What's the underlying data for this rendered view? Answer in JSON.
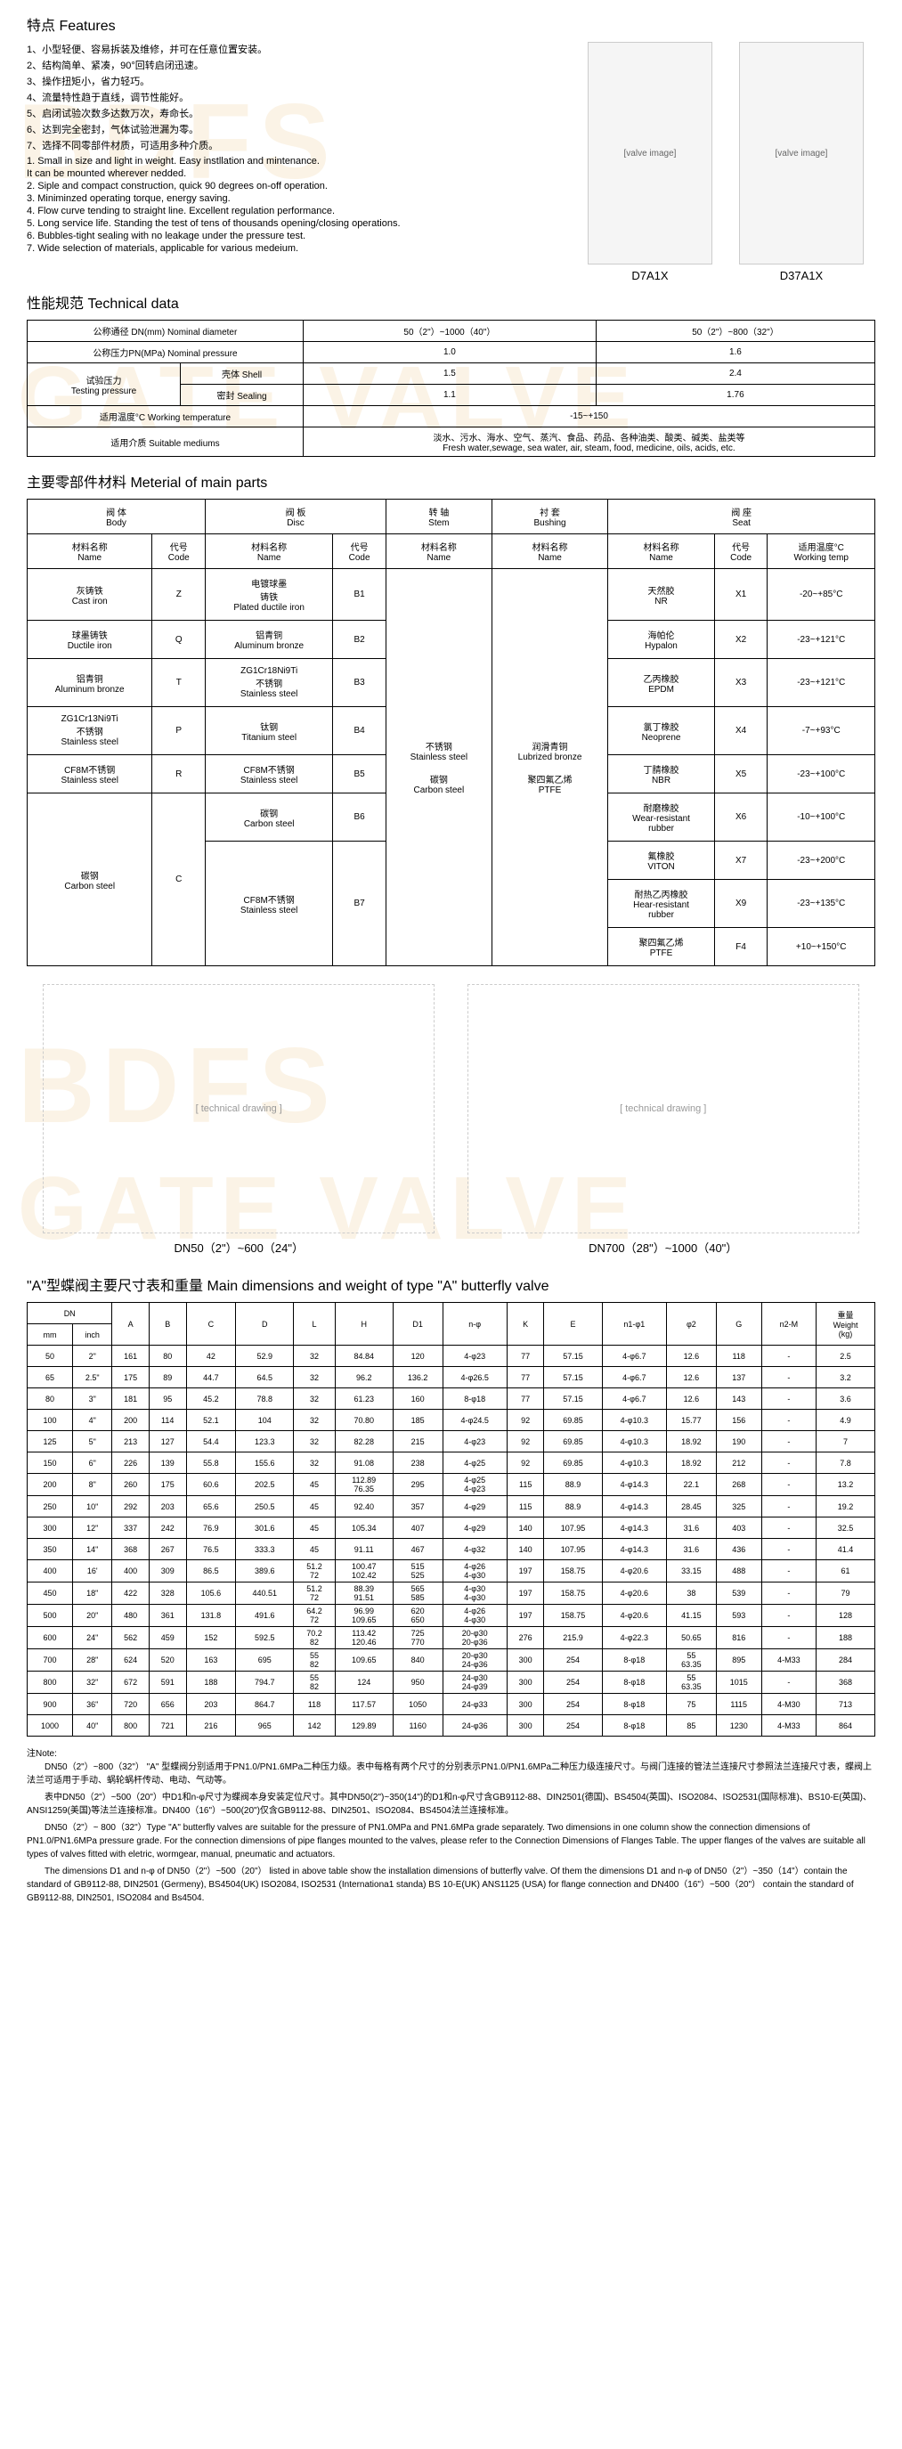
{
  "watermark_top": "BDFS",
  "watermark_bottom": "GATE VALVE",
  "features": {
    "title": "特点  Features",
    "cn": [
      "1、小型轻便、容易拆装及维修，并可在任意位置安装。",
      "2、结构简单、紧凑，90°回转启闭迅速。",
      "3、操作扭矩小，省力轻巧。",
      "4、流量特性趋于直线，调节性能好。",
      "5、启闭试验次数多达数万次，寿命长。",
      "6、达到完全密封，气体试验泄漏为零。",
      "7、选择不同零部件材质，可适用多种介质。"
    ],
    "en": [
      "1.  Small in size and light in weight. Easy instllation and mintenance.",
      "    It can be mounted wherever nedded.",
      "2.  Siple and compact construction, quick 90 degrees on-off operation.",
      "3.  Miniminzed operating torque, energy  saving.",
      "4.  Flow curve tending to straight line. Excellent regulation performance.",
      "5.  Long service life. Standing the test of tens of thousands  opening/closing operations.",
      "6.  Bubbles-tight sealing with no leakage under the pressure test.",
      "7.  Wide selection of materials, applicable for various medeium."
    ],
    "valve1": "D7A1X",
    "valve2": "D37A1X"
  },
  "tech": {
    "title": "性能规范  Technical data",
    "rows": [
      {
        "label": "公称通径 DN(mm)   Nominal diameter",
        "c1": "50（2\"）~1000（40\"）",
        "c2": "50（2\"）~800（32\"）"
      },
      {
        "label": "公称压力PN(MPa)   Nominal pressure",
        "c1": "1.0",
        "c2": "1.6"
      }
    ],
    "testing_label": "试验压力\nTesting pressure",
    "shell_label": "壳体  Shell",
    "shell_c1": "1.5",
    "shell_c2": "2.4",
    "sealing_label": "密封  Sealing",
    "sealing_c1": "1.1",
    "sealing_c2": "1.76",
    "temp_label": "适用温度°C Working temperature",
    "temp_val": "-15~+150",
    "medium_label": "适用介质  Suitable mediums",
    "medium_val": "淡水、污水、海水、空气、蒸汽、食品、药品、各种油类、酸类、碱类、盐类等\nFresh water,sewage, sea water, air, steam, food, medicine, oils, acids, etc."
  },
  "parts": {
    "title": "主要零部件材料   Meterial of main parts",
    "headers": [
      "阀   体\nBody",
      "阀   板\nDisc",
      "转   轴\nStem",
      "衬   套\nBushing",
      "阀   座\nSeat"
    ],
    "subheaders": [
      "材料名称\nName",
      "代号\nCode",
      "材料名称\nName",
      "代号\nCode",
      "材料名称\nName",
      "材料名称\nName",
      "材料名称\nName",
      "代号\nCode",
      "适用温度°C\nWorking temp"
    ],
    "body": [
      {
        "n": "灰铸铁\nCast iron",
        "c": "Z"
      },
      {
        "n": "球墨铸铁\nDuctile iron",
        "c": "Q"
      },
      {
        "n": "铝青铜\nAluminum bronze",
        "c": "T"
      },
      {
        "n": "ZG1Cr13Ni9Ti\n不锈钢\nStainless steel",
        "c": "P"
      },
      {
        "n": "CF8M不锈钢\nStainless steel",
        "c": "R"
      },
      {
        "n": "碳钢\nCarbon steel",
        "c": "C"
      }
    ],
    "disc": [
      {
        "n": "电镀球墨\n铸铁\nPlated ductile iron",
        "c": "B1"
      },
      {
        "n": "铝青铜\nAluminum bronze",
        "c": "B2"
      },
      {
        "n": "ZG1Cr18Ni9Ti\n不锈钢\nStainless steel",
        "c": "B3"
      },
      {
        "n": "钛钢\nTitanium steel",
        "c": "B4"
      },
      {
        "n": "CF8M不锈钢\nStainless steel",
        "c": "B5"
      },
      {
        "n": "碳钢\nCarbon steel",
        "c": "B6"
      },
      {
        "n": "CF8M不锈钢\nStainless steel",
        "c": "B7"
      }
    ],
    "stem": "不锈钢\nStainless steel\n\n碳钢\nCarbon steel",
    "bushing": "润滑青铜\nLubrized bronze\n\n聚四氟乙烯\nPTFE",
    "seat": [
      {
        "n": "天然胶\nNR",
        "c": "X1",
        "t": "-20~+85°C"
      },
      {
        "n": "海帕伦\nHypalon",
        "c": "X2",
        "t": "-23~+121°C"
      },
      {
        "n": "乙丙橡胶\nEPDM",
        "c": "X3",
        "t": "-23~+121°C"
      },
      {
        "n": "氯丁橡胶\nNeoprene",
        "c": "X4",
        "t": "-7~+93°C"
      },
      {
        "n": "丁腈橡胶\nNBR",
        "c": "X5",
        "t": "-23~+100°C"
      },
      {
        "n": "耐磨橡胶\nWear-resistant\nrubber",
        "c": "X6",
        "t": "-10~+100°C"
      },
      {
        "n": "氟橡胶\nVITON",
        "c": "X7",
        "t": "-23~+200°C"
      },
      {
        "n": "耐热乙丙橡胶\nHear-resistant\nrubber",
        "c": "X9",
        "t": "-23~+135°C"
      },
      {
        "n": "聚四氟乙烯\nPTFE",
        "c": "F4",
        "t": "+10~+150°C"
      }
    ]
  },
  "diagrams": {
    "left": "DN50（2\"）~600（24\"）",
    "right": "DN700（28\"）~1000（40\"）"
  },
  "dims": {
    "title": "\"A\"型蝶阀主要尺寸表和重量   Main dimensions and weight of  type \"A\" butterfly valve",
    "headers": [
      "DN",
      "A",
      "B",
      "C",
      "D",
      "L",
      "H",
      "D1",
      "n-φ",
      "K",
      "E",
      "n1-φ1",
      "φ2",
      "G",
      "n2-M",
      "重量\nWeight\n(kg)"
    ],
    "subdn": [
      "mm",
      "inch"
    ],
    "rows": [
      [
        "50",
        "2\"",
        "161",
        "80",
        "42",
        "52.9",
        "32",
        "84.84",
        "120",
        "4-φ23",
        "77",
        "57.15",
        "4-φ6.7",
        "12.6",
        "118",
        "-",
        "2.5"
      ],
      [
        "65",
        "2.5\"",
        "175",
        "89",
        "44.7",
        "64.5",
        "32",
        "96.2",
        "136.2",
        "4-φ26.5",
        "77",
        "57.15",
        "4-φ6.7",
        "12.6",
        "137",
        "-",
        "3.2"
      ],
      [
        "80",
        "3\"",
        "181",
        "95",
        "45.2",
        "78.8",
        "32",
        "61.23",
        "160",
        "8-φ18",
        "77",
        "57.15",
        "4-φ6.7",
        "12.6",
        "143",
        "-",
        "3.6"
      ],
      [
        "100",
        "4\"",
        "200",
        "114",
        "52.1",
        "104",
        "32",
        "70.80",
        "185",
        "4-φ24.5",
        "92",
        "69.85",
        "4-φ10.3",
        "15.77",
        "156",
        "-",
        "4.9"
      ],
      [
        "125",
        "5\"",
        "213",
        "127",
        "54.4",
        "123.3",
        "32",
        "82.28",
        "215",
        "4-φ23",
        "92",
        "69.85",
        "4-φ10.3",
        "18.92",
        "190",
        "-",
        "7"
      ],
      [
        "150",
        "6\"",
        "226",
        "139",
        "55.8",
        "155.6",
        "32",
        "91.08",
        "238",
        "4-φ25",
        "92",
        "69.85",
        "4-φ10.3",
        "18.92",
        "212",
        "-",
        "7.8"
      ],
      [
        "200",
        "8\"",
        "260",
        "175",
        "60.6",
        "202.5",
        "45",
        "112.89\n76.35",
        "295",
        "4-φ25\n4-φ23",
        "115",
        "88.9",
        "4-φ14.3",
        "22.1",
        "268",
        "-",
        "13.2"
      ],
      [
        "250",
        "10\"",
        "292",
        "203",
        "65.6",
        "250.5",
        "45",
        "92.40",
        "357",
        "4-φ29",
        "115",
        "88.9",
        "4-φ14.3",
        "28.45",
        "325",
        "-",
        "19.2"
      ],
      [
        "300",
        "12\"",
        "337",
        "242",
        "76.9",
        "301.6",
        "45",
        "105.34",
        "407",
        "4-φ29",
        "140",
        "107.95",
        "4-φ14.3",
        "31.6",
        "403",
        "-",
        "32.5"
      ],
      [
        "350",
        "14\"",
        "368",
        "267",
        "76.5",
        "333.3",
        "45",
        "91.11",
        "467",
        "4-φ32",
        "140",
        "107.95",
        "4-φ14.3",
        "31.6",
        "436",
        "-",
        "41.4"
      ],
      [
        "400",
        "16'",
        "400",
        "309",
        "86.5",
        "389.6",
        "51.2\n72",
        "100.47\n102.42",
        "515\n525",
        "4-φ26\n4-φ30",
        "197",
        "158.75",
        "4-φ20.6",
        "33.15",
        "488",
        "-",
        "61"
      ],
      [
        "450",
        "18\"",
        "422",
        "328",
        "105.6",
        "440.51",
        "51.2\n72",
        "88.39\n91.51",
        "565\n585",
        "4-φ30\n4-φ30",
        "197",
        "158.75",
        "4-φ20.6",
        "38",
        "539",
        "-",
        "79"
      ],
      [
        "500",
        "20\"",
        "480",
        "361",
        "131.8",
        "491.6",
        "64.2\n72",
        "96.99\n109.65",
        "620\n650",
        "4-φ26\n4-φ30",
        "197",
        "158.75",
        "4-φ20.6",
        "41.15",
        "593",
        "-",
        "128"
      ],
      [
        "600",
        "24\"",
        "562",
        "459",
        "152",
        "592.5",
        "70.2\n82",
        "113.42\n120.46",
        "725\n770",
        "20-φ30\n20-φ36",
        "276",
        "215.9",
        "4-φ22.3",
        "50.65",
        "816",
        "-",
        "188"
      ],
      [
        "700",
        "28\"",
        "624",
        "520",
        "163",
        "695",
        "55\n82",
        "109.65",
        "840",
        "20-φ30\n24-φ36",
        "300",
        "254",
        "8-φ18",
        "55\n63.35",
        "895",
        "4-M33",
        "284"
      ],
      [
        "800",
        "32\"",
        "672",
        "591",
        "188",
        "794.7",
        "55\n82",
        "124",
        "950",
        "24-φ30\n24-φ39",
        "300",
        "254",
        "8-φ18",
        "55\n63.35",
        "1015",
        "-",
        "368"
      ],
      [
        "900",
        "36\"",
        "720",
        "656",
        "203",
        "864.7",
        "118",
        "117.57",
        "1050",
        "24-φ33",
        "300",
        "254",
        "8-φ18",
        "75",
        "1115",
        "4-M30",
        "713"
      ],
      [
        "1000",
        "40\"",
        "800",
        "721",
        "216",
        "965",
        "142",
        "129.89",
        "1160",
        "24-φ36",
        "300",
        "254",
        "8-φ18",
        "85",
        "1230",
        "4-M33",
        "864"
      ]
    ]
  },
  "notes": {
    "title": "注Note:",
    "lines": [
      "DN50（2\"）~800（32\"） \"A\" 型蝶阀分别适用于PN1.0/PN1.6MPa二种压力级。表中每格有两个尺寸的分别表示PN1.0/PN1.6MPa二种压力级连接尺寸。与阀门连接的管法兰连接尺寸参照法兰连接尺寸表，蝶阀上法兰可适用于手动、蜗轮蜗杆传动、电动、气动等。",
      "表中DN50（2\"）~500（20\"）中D1和n-φ尺寸为蝶阀本身安装定位尺寸。其中DN50(2\")~350(14\")的D1和n-φ尺寸含GB9112-88、DIN2501(德国)、BS4504(英国)、ISO2084、ISO2531(国际标准)、BS10-E(英国)、ANSI1259(美国)等法兰连接标准。DN400（16\"）~500(20\")仅含GB9112-88、DIN2501、ISO2084、BS4504法兰连接标准。",
      "DN50（2\"）~ 800（32\"）Type \"A\"  butterfly valves are suitable for the pressure of PN1.0MPa  and  PN1.6MPa  grade  separately.  Two dimensions in one column show the connection dimensions of PN1.0/PN1.6MPa pressure grade.  For the connection dimensions of pipe flanges  mounted to the valves,  please refer to  the Connection Dimensions of Flanges Table. The upper  flanges of the valves are  suitable  all  types of valves fitted with eletric, wormgear, manual, pneumatic and actuators.",
      "The dimensions D1  and  n-φ  of  DN50（2\"）~500（20\"） listed  in  above  table  show  the  installation  dimensions  of  butterfly  valve.   Of  them  the  dimensions D1   and   n-φ of  DN50（2\"）~350（14\"）contain the standard of  GB9112-88, DIN2501 (Germeny),  BS4504(UK) ISO2084,  ISO2531 (Internationa1 standa)  BS 10-E(UK) ANS1125 (USA) for  flange connection  and DN400（16\"）~500（20\"） contain  the  standard of GB9112-88, DIN2501, ISO2084  and  Bs4504."
    ]
  }
}
